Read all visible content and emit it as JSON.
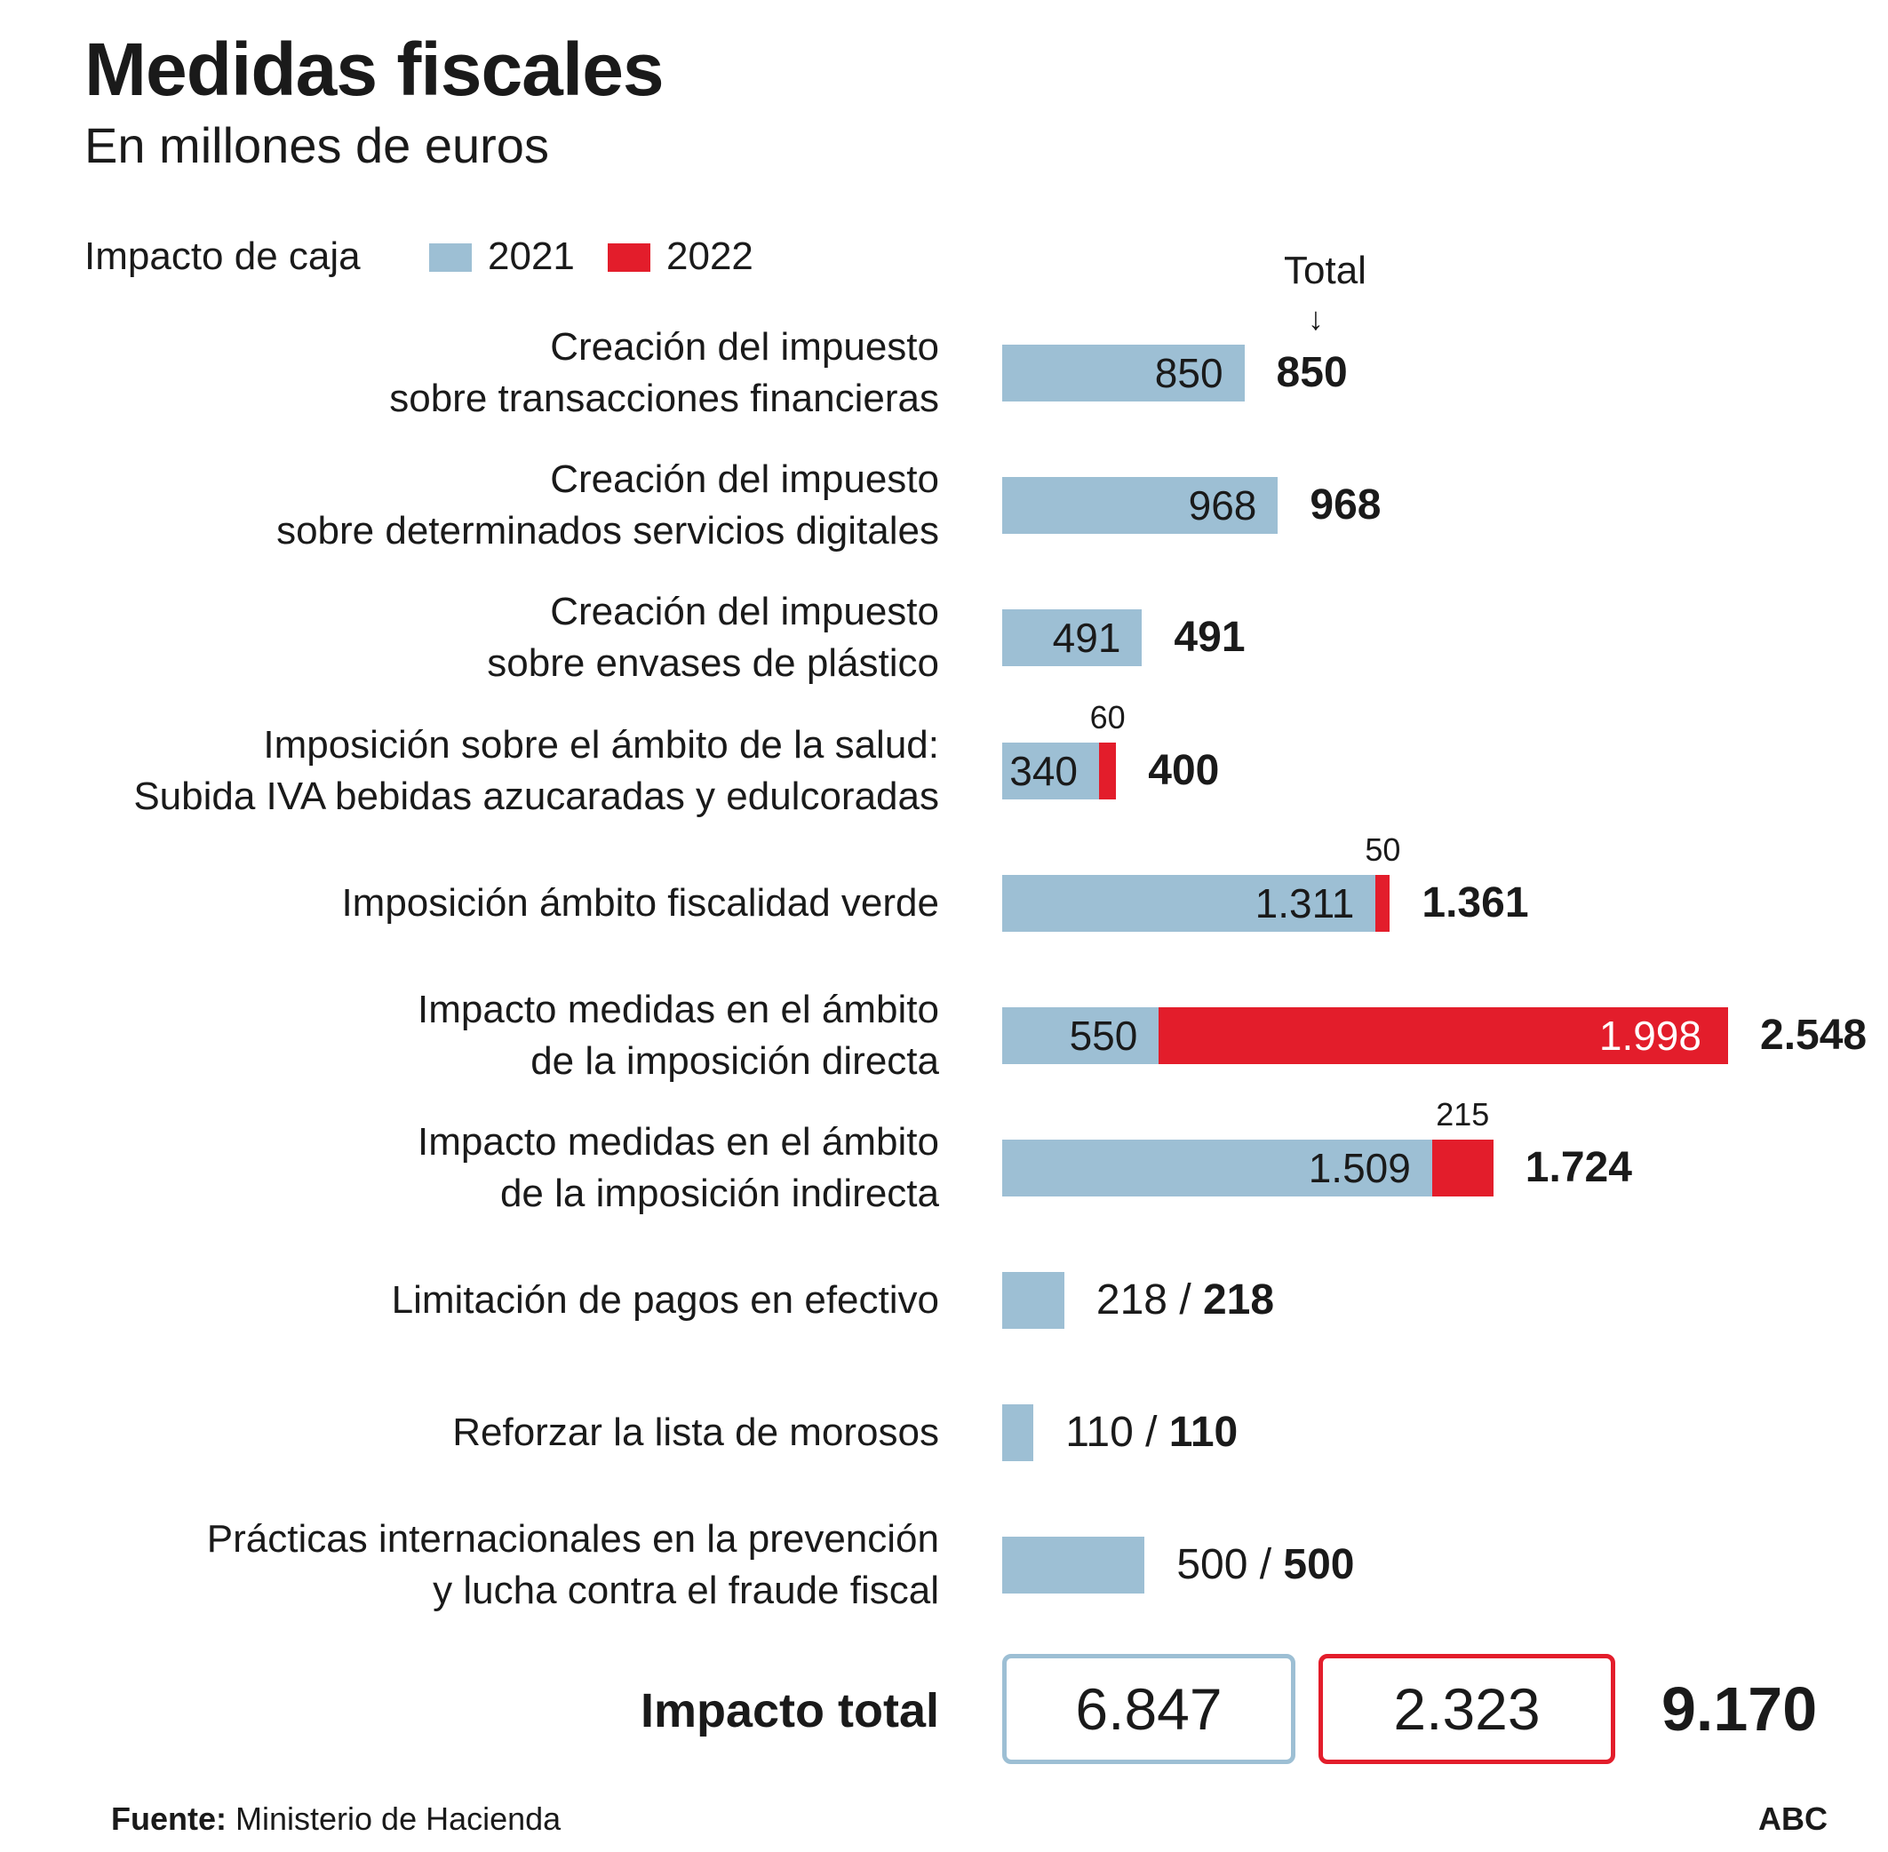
{
  "chart_data": {
    "type": "bar",
    "orientation": "horizontal",
    "stacked": true,
    "title": "Medidas fiscales",
    "subtitle": "En millones de euros",
    "legend_title": "Impacto de caja",
    "total_column_label": "Total",
    "total_arrow": "↓",
    "series": [
      {
        "name": "2021",
        "color": "#9dbfd4"
      },
      {
        "name": "2022",
        "color": "#e31d2b"
      }
    ],
    "xlim": [
      0,
      2548
    ],
    "rows": [
      {
        "label1": "Creación del impuesto",
        "label2": "sobre transacciones financieras",
        "v2021": 850,
        "v2022": 0,
        "l2021": "850",
        "l2022": "",
        "total": "850",
        "total_style": "plain"
      },
      {
        "label1": "Creación del impuesto",
        "label2": "sobre determinados servicios digitales",
        "v2021": 968,
        "v2022": 0,
        "l2021": "968",
        "l2022": "",
        "total": "968",
        "total_style": "plain"
      },
      {
        "label1": "Creación del impuesto",
        "label2": "sobre envases de plástico",
        "v2021": 491,
        "v2022": 0,
        "l2021": "491",
        "l2022": "",
        "total": "491",
        "total_style": "plain"
      },
      {
        "label1": "Imposición sobre el ámbito de la salud:",
        "label2": "Subida IVA bebidas azucaradas y edulcoradas",
        "v2021": 340,
        "v2022": 60,
        "l2021": "340",
        "l2022": "60",
        "total": "400",
        "total_style": "plain"
      },
      {
        "label1": "Imposición ámbito fiscalidad verde",
        "label2": "",
        "v2021": 1311,
        "v2022": 50,
        "l2021": "1.311",
        "l2022": "50",
        "total": "1.361",
        "total_style": "plain"
      },
      {
        "label1": "Impacto medidas en el ámbito",
        "label2": "de la imposición directa",
        "v2021": 550,
        "v2022": 1998,
        "l2021": "550",
        "l2022": "1.998",
        "total": "2.548",
        "total_style": "plain"
      },
      {
        "label1": "Impacto medidas en el ámbito",
        "label2": "de la imposición indirecta",
        "v2021": 1509,
        "v2022": 215,
        "l2021": "1.509",
        "l2022": "215",
        "total": "1.724",
        "total_style": "plain"
      },
      {
        "label1": "Limitación de pagos en efectivo",
        "label2": "",
        "v2021": 218,
        "v2022": 0,
        "l2021": "218",
        "l2022": "",
        "total": "218",
        "total_style": "slash"
      },
      {
        "label1": "Reforzar la lista de morosos",
        "label2": "",
        "v2021": 110,
        "v2022": 0,
        "l2021": "110",
        "l2022": "",
        "total": "110",
        "total_style": "slash"
      },
      {
        "label1": "Prácticas internacionales en la prevención",
        "label2": "y lucha contra el fraude fiscal",
        "v2021": 500,
        "v2022": 0,
        "l2021": "500",
        "l2022": "",
        "total": "500",
        "total_style": "slash"
      }
    ],
    "impact_total": {
      "label": "Impacto total",
      "v2021": "6.847",
      "v2022": "2.323",
      "total": "9.170"
    }
  },
  "footer": {
    "source_label": "Fuente:",
    "source_text": "Ministerio de Hacienda",
    "brand": "ABC"
  }
}
